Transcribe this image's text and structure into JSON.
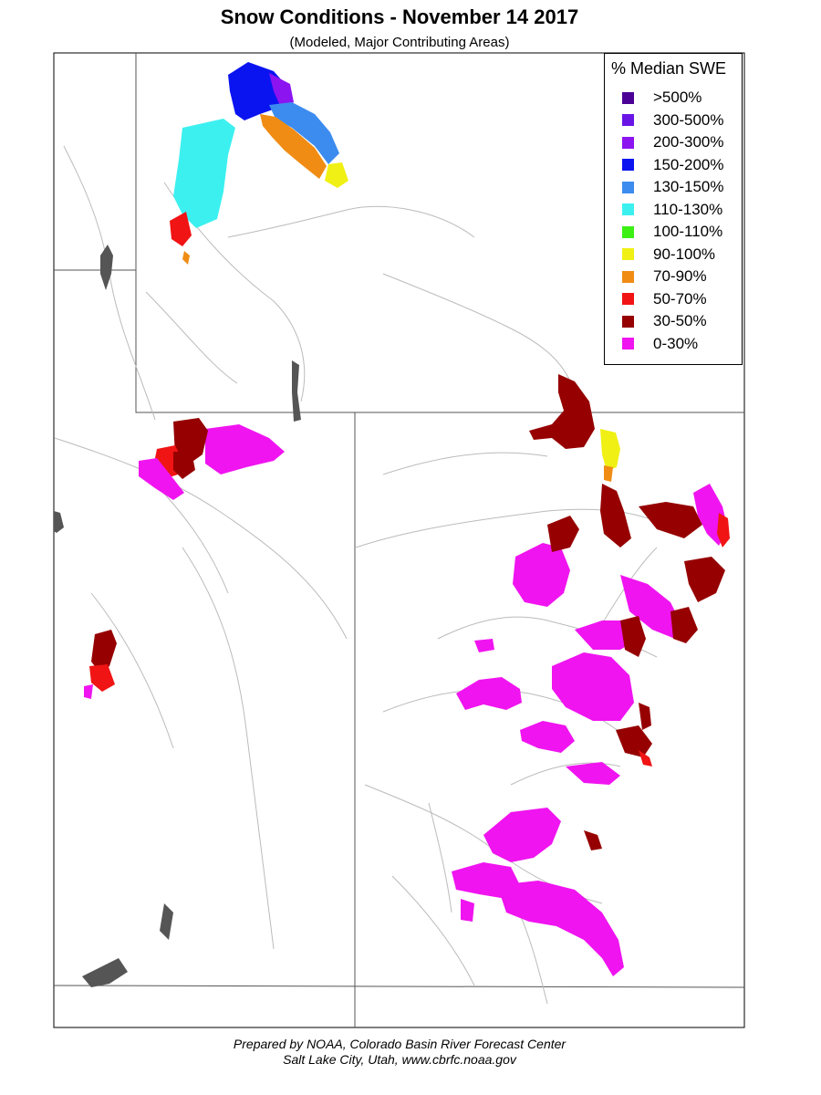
{
  "title": "Snow Conditions - November 14 2017",
  "subtitle": "(Modeled, Major Contributing Areas)",
  "legend": {
    "title": "% Median SWE",
    "items": [
      {
        "label": ">500%",
        "color": "#4b0096"
      },
      {
        "label": "300-500%",
        "color": "#6a14e6"
      },
      {
        "label": "200-300%",
        "color": "#8c14f0"
      },
      {
        "label": "150-200%",
        "color": "#0a14f0"
      },
      {
        "label": "130-150%",
        "color": "#3c8cf0"
      },
      {
        "label": "110-130%",
        "color": "#3cf0f0"
      },
      {
        "label": "100-110%",
        "color": "#3cf014"
      },
      {
        "label": "90-100%",
        "color": "#f0f014"
      },
      {
        "label": "70-90%",
        "color": "#f08c14"
      },
      {
        "label": "50-70%",
        "color": "#f01414"
      },
      {
        "label": "30-50%",
        "color": "#960000"
      },
      {
        "label": "0-30%",
        "color": "#f014f0"
      }
    ]
  },
  "footer": {
    "line1": "Prepared by NOAA, Colorado Basin River Forecast Center",
    "line2": "Salt Lake City, Utah, www.cbrfc.noaa.gov"
  }
}
